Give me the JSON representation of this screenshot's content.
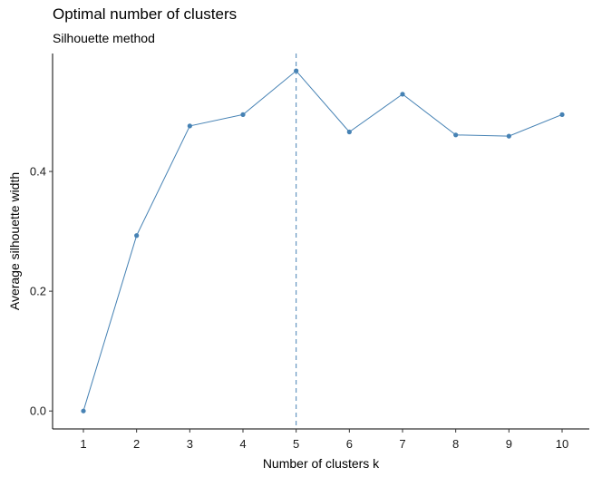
{
  "chart_data": {
    "type": "line",
    "title": "Optimal number of clusters",
    "subtitle": "Silhouette method",
    "xlabel": "Number of clusters k",
    "ylabel": "Average silhouette width",
    "categories": [
      "1",
      "2",
      "3",
      "4",
      "5",
      "6",
      "7",
      "8",
      "9",
      "10"
    ],
    "series": [
      {
        "values": [
          0.0,
          0.293,
          0.476,
          0.495,
          0.568,
          0.466,
          0.529,
          0.461,
          0.459,
          0.495
        ]
      }
    ],
    "y_ticks": [
      0.0,
      0.2,
      0.4
    ],
    "y_tick_labels": [
      "0.0",
      "0.2",
      "0.4"
    ],
    "ylim": [
      -0.03,
      0.597
    ],
    "optimal_k": 5,
    "grid": false,
    "colors": {
      "line": "#4682B4",
      "marker": "#4682B4",
      "axis": "#000000"
    }
  }
}
